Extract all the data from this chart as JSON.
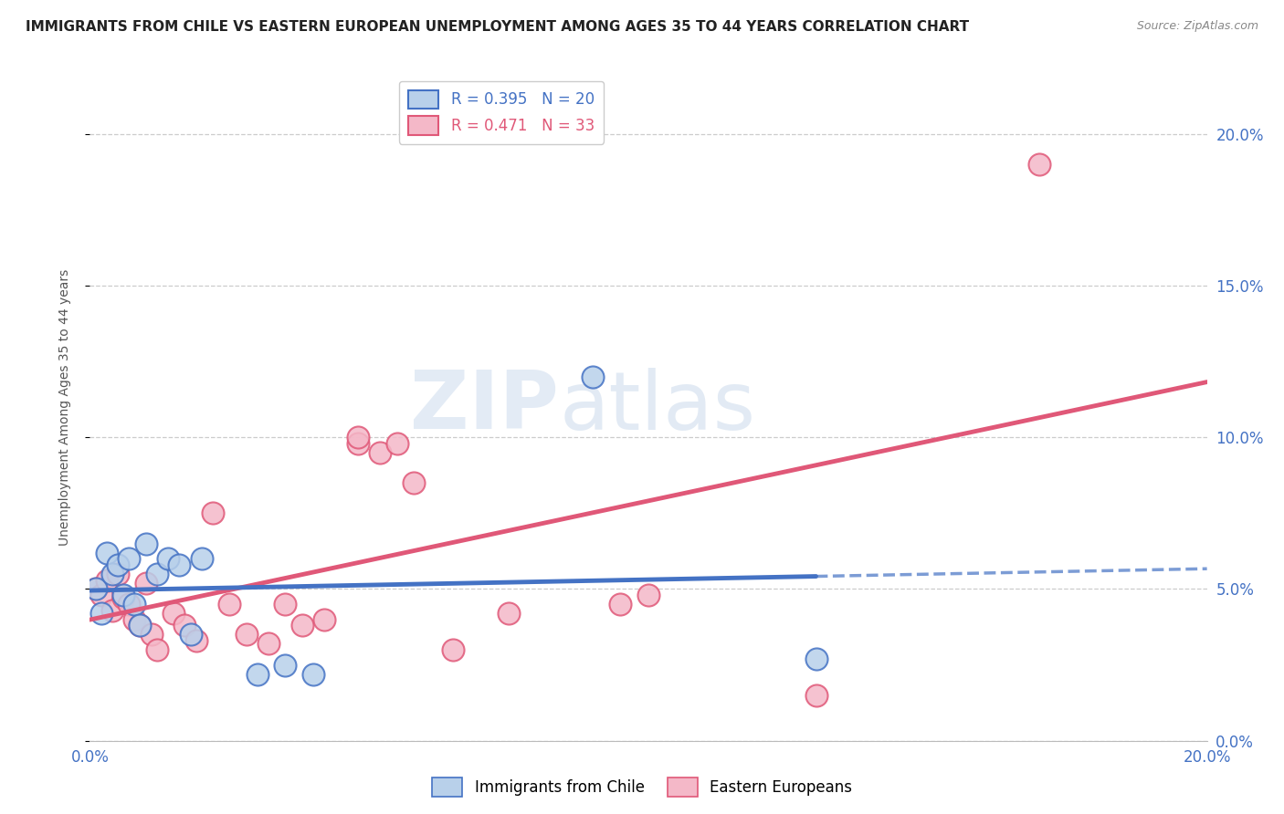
{
  "title": "IMMIGRANTS FROM CHILE VS EASTERN EUROPEAN UNEMPLOYMENT AMONG AGES 35 TO 44 YEARS CORRELATION CHART",
  "source": "Source: ZipAtlas.com",
  "ylabel": "Unemployment Among Ages 35 to 44 years",
  "xlim": [
    0.0,
    0.2
  ],
  "ylim": [
    0.0,
    0.22
  ],
  "chile_x": [
    0.001,
    0.002,
    0.003,
    0.004,
    0.005,
    0.006,
    0.007,
    0.008,
    0.009,
    0.01,
    0.012,
    0.014,
    0.016,
    0.018,
    0.02,
    0.03,
    0.035,
    0.04,
    0.09,
    0.13
  ],
  "chile_y": [
    0.05,
    0.042,
    0.062,
    0.055,
    0.058,
    0.048,
    0.06,
    0.045,
    0.038,
    0.065,
    0.055,
    0.06,
    0.058,
    0.035,
    0.06,
    0.022,
    0.025,
    0.022,
    0.12,
    0.027
  ],
  "eastern_x": [
    0.001,
    0.002,
    0.003,
    0.004,
    0.005,
    0.006,
    0.007,
    0.008,
    0.009,
    0.01,
    0.011,
    0.012,
    0.015,
    0.017,
    0.019,
    0.022,
    0.025,
    0.028,
    0.032,
    0.035,
    0.038,
    0.042,
    0.048,
    0.048,
    0.052,
    0.055,
    0.058,
    0.065,
    0.075,
    0.095,
    0.1,
    0.13,
    0.17
  ],
  "eastern_y": [
    0.05,
    0.048,
    0.053,
    0.043,
    0.055,
    0.047,
    0.045,
    0.04,
    0.038,
    0.052,
    0.035,
    0.03,
    0.042,
    0.038,
    0.033,
    0.075,
    0.045,
    0.035,
    0.032,
    0.045,
    0.038,
    0.04,
    0.098,
    0.1,
    0.095,
    0.098,
    0.085,
    0.03,
    0.042,
    0.045,
    0.048,
    0.015,
    0.19
  ],
  "chile_R": 0.395,
  "chile_N": 20,
  "eastern_R": 0.471,
  "eastern_N": 33,
  "chile_color": "#b8d0ea",
  "chile_line_color": "#4472c4",
  "eastern_color": "#f4b8c8",
  "eastern_line_color": "#e05878",
  "background_color": "#ffffff",
  "grid_color": "#cccccc",
  "watermark_zip": "ZIP",
  "watermark_atlas": "atlas",
  "title_fontsize": 11,
  "axis_label_fontsize": 10,
  "legend_fontsize": 12
}
